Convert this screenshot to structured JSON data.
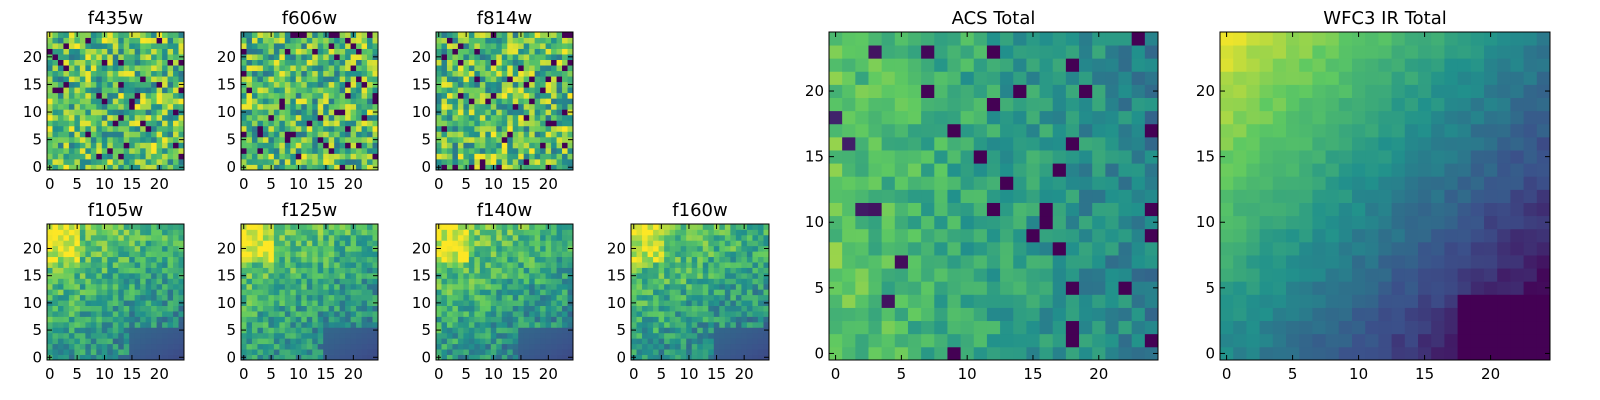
{
  "chart_data": [
    {
      "type": "heatmap",
      "title": "f435w",
      "pattern": "noise",
      "xticks": [
        "0",
        "5",
        "10",
        "15",
        "20"
      ],
      "yticks": [
        "0",
        "5",
        "10",
        "15",
        "20"
      ],
      "xlim": [
        -0.5,
        24.5
      ],
      "ylim": [
        -0.5,
        24.5
      ],
      "grid": false
    },
    {
      "type": "heatmap",
      "title": "f606w",
      "pattern": "noise",
      "xticks": [
        "0",
        "5",
        "10",
        "15",
        "20"
      ],
      "yticks": [
        "0",
        "5",
        "10",
        "15",
        "20"
      ],
      "xlim": [
        -0.5,
        24.5
      ],
      "ylim": [
        -0.5,
        24.5
      ],
      "grid": false
    },
    {
      "type": "heatmap",
      "title": "f814w",
      "pattern": "noise",
      "xticks": [
        "0",
        "5",
        "10",
        "15",
        "20"
      ],
      "yticks": [
        "0",
        "5",
        "10",
        "15",
        "20"
      ],
      "xlim": [
        -0.5,
        24.5
      ],
      "ylim": [
        -0.5,
        24.5
      ],
      "grid": false
    },
    {
      "type": "heatmap",
      "title": "f105w",
      "pattern": "ir",
      "xticks": [
        "0",
        "5",
        "10",
        "15",
        "20"
      ],
      "yticks": [
        "0",
        "5",
        "10",
        "15",
        "20"
      ],
      "xlim": [
        -0.5,
        24.5
      ],
      "ylim": [
        -0.5,
        24.5
      ],
      "grid": false
    },
    {
      "type": "heatmap",
      "title": "f125w",
      "pattern": "ir",
      "xticks": [
        "0",
        "5",
        "10",
        "15",
        "20"
      ],
      "yticks": [
        "0",
        "5",
        "10",
        "15",
        "20"
      ],
      "xlim": [
        -0.5,
        24.5
      ],
      "ylim": [
        -0.5,
        24.5
      ],
      "grid": false
    },
    {
      "type": "heatmap",
      "title": "f140w",
      "pattern": "ir",
      "xticks": [
        "0",
        "5",
        "10",
        "15",
        "20"
      ],
      "yticks": [
        "0",
        "5",
        "10",
        "15",
        "20"
      ],
      "xlim": [
        -0.5,
        24.5
      ],
      "ylim": [
        -0.5,
        24.5
      ],
      "grid": false
    },
    {
      "type": "heatmap",
      "title": "f160w",
      "pattern": "ir",
      "xticks": [
        "0",
        "5",
        "10",
        "15",
        "20"
      ],
      "yticks": [
        "0",
        "5",
        "10",
        "15",
        "20"
      ],
      "xlim": [
        -0.5,
        24.5
      ],
      "ylim": [
        -0.5,
        24.5
      ],
      "grid": false
    },
    {
      "type": "heatmap",
      "title": "ACS Total",
      "pattern": "acs",
      "xticks": [
        "0",
        "5",
        "10",
        "15",
        "20"
      ],
      "yticks": [
        "0",
        "5",
        "10",
        "15",
        "20"
      ],
      "xlim": [
        -0.5,
        24.5
      ],
      "ylim": [
        -0.5,
        24.5
      ],
      "grid": false
    },
    {
      "type": "heatmap",
      "title": "WFC3 IR Total",
      "pattern": "irtotal",
      "xticks": [
        "0",
        "5",
        "10",
        "15",
        "20"
      ],
      "yticks": [
        "0",
        "5",
        "10",
        "15",
        "20"
      ],
      "xlim": [
        -0.5,
        24.5
      ],
      "ylim": [
        -0.5,
        24.5
      ],
      "grid": false
    }
  ],
  "colormap": [
    "#440154",
    "#3b528b",
    "#21918c",
    "#5ec962",
    "#fde725"
  ]
}
